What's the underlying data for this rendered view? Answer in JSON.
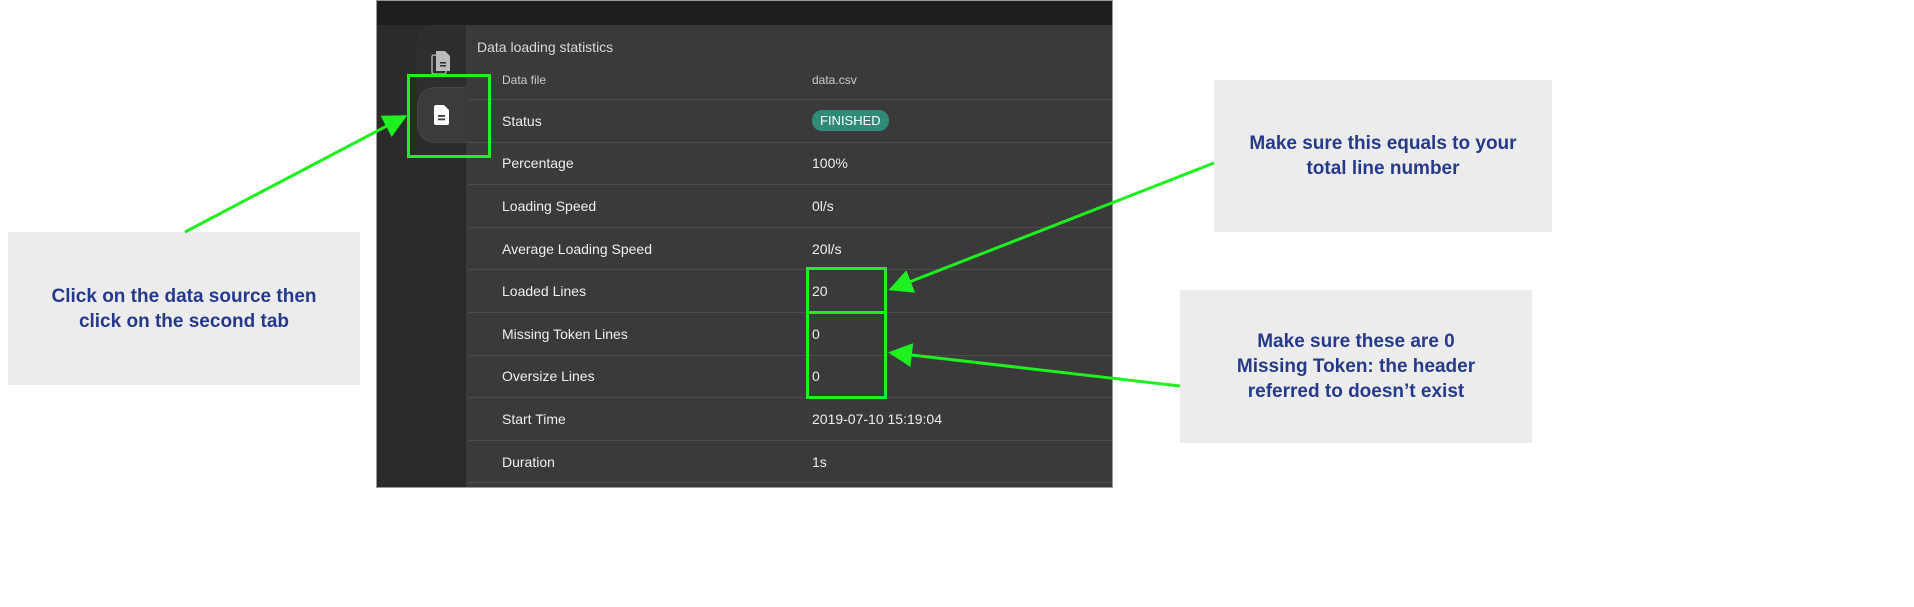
{
  "panel": {
    "title": "Data loading statistics",
    "rows": [
      {
        "label": "Data file",
        "value": "data.csv"
      },
      {
        "label": "Status",
        "value": "FINISHED"
      },
      {
        "label": "Percentage",
        "value": "100%"
      },
      {
        "label": "Loading Speed",
        "value": "0l/s"
      },
      {
        "label": "Average Loading Speed",
        "value": "20l/s"
      },
      {
        "label": "Loaded Lines",
        "value": "20"
      },
      {
        "label": "Missing Token Lines",
        "value": "0"
      },
      {
        "label": "Oversize Lines",
        "value": "0"
      },
      {
        "label": "Start Time",
        "value": "2019-07-10 15:19:04"
      },
      {
        "label": "Duration",
        "value": "1s"
      }
    ],
    "status_color": "#2f8a78",
    "tabs": [
      {
        "icon": "files-icon"
      },
      {
        "icon": "file-icon",
        "active": true
      }
    ]
  },
  "annotations": {
    "left": "Click on the data source then click on the second tab",
    "right_top": "Make sure this equals to your total line number",
    "right_bottom_1": "Make sure these are 0",
    "right_bottom_2": "Missing Token: the header referred to doesn’t exist"
  }
}
